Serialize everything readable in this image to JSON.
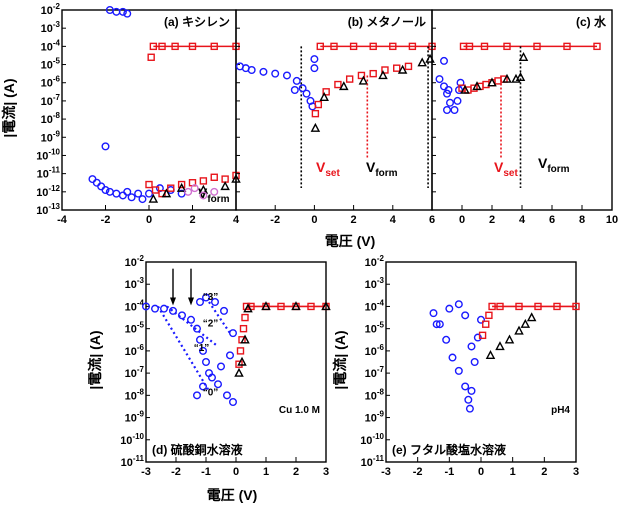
{
  "figure": {
    "top_xlabel": "電圧 (V)",
    "bottom_xlabel": "電圧 (V)",
    "ylabel": "|電流| (A)",
    "vset_label": "V",
    "vset_sub": "set",
    "vform_label": "V",
    "vform_sub": "form"
  },
  "chart_data": [
    {
      "type": "scatter",
      "panel": "a",
      "title": "(a) キシレン",
      "xlim": [
        -4,
        4
      ],
      "ylog_range": [
        -13,
        -2
      ],
      "x_ticks": [
        "-4",
        "-2",
        "0",
        "2",
        "4"
      ],
      "y_ticks": [
        "10-2",
        "10-3",
        "10-4",
        "10-5",
        "10-6",
        "10-7",
        "10-8",
        "10-9",
        "10-10",
        "10-11",
        "10-12",
        "10-13"
      ],
      "annotations": {
        "vform_x": 7.0
      },
      "series": [
        {
          "color": "#1a1aff",
          "marker": "circle",
          "points": [
            [
              -2.6,
              -11.3
            ],
            [
              -2.4,
              -11.5
            ],
            [
              -2.2,
              -11.7
            ],
            [
              -2.0,
              -11.9
            ],
            [
              -1.8,
              -12.0
            ],
            [
              -1.5,
              -12.1
            ],
            [
              -1.2,
              -12.2
            ],
            [
              -1.0,
              -12.0
            ],
            [
              -0.8,
              -12.3
            ],
            [
              -0.5,
              -12.1
            ],
            [
              -0.3,
              -12.4
            ],
            [
              -2.0,
              -9.5
            ],
            [
              -1.8,
              -2.0
            ],
            [
              -1.5,
              -2.1
            ],
            [
              -1.2,
              -2.1
            ],
            [
              -1.0,
              -2.2
            ],
            [
              0.0,
              -12.1
            ],
            [
              0.5,
              -11.8
            ],
            [
              1.0,
              -11.9
            ],
            [
              1.5,
              -12.1
            ]
          ]
        },
        {
          "color": "#e8141b",
          "marker": "square",
          "points": [
            [
              0,
              -11.6
            ],
            [
              0.3,
              -11.9
            ],
            [
              0.6,
              -12.1
            ],
            [
              1.0,
              -11.8
            ],
            [
              1.5,
              -11.6
            ],
            [
              2.0,
              -11.5
            ],
            [
              2.5,
              -11.4
            ],
            [
              3.0,
              -11.2
            ],
            [
              3.5,
              -11.3
            ],
            [
              4.0,
              -11.1
            ],
            [
              0.1,
              -4.6
            ],
            [
              0.2,
              -4.0
            ],
            [
              0.6,
              -4.0
            ],
            [
              1.2,
              -4.0
            ],
            [
              2.0,
              -4.0
            ],
            [
              3.0,
              -4.0
            ],
            [
              4.0,
              -4.0
            ]
          ]
        },
        {
          "color": "#000000",
          "marker": "triangle",
          "points": [
            [
              0.2,
              -12.4
            ],
            [
              0.8,
              -12.1
            ],
            [
              1.5,
              -11.8
            ],
            [
              2.5,
              -11.9
            ],
            [
              3.5,
              -11.7
            ],
            [
              4.0,
              -11.3
            ]
          ]
        },
        {
          "color": "#d070d0",
          "marker": "circle",
          "points": [
            [
              1.8,
              -12.0
            ],
            [
              2.1,
              -11.8
            ],
            [
              2.5,
              -12.2
            ],
            [
              3.0,
              -12.0
            ]
          ]
        }
      ]
    },
    {
      "type": "scatter",
      "panel": "b",
      "title": "(b) メタノール",
      "xlim": [
        -4,
        6
      ],
      "ylog_range": [
        -13,
        -2
      ],
      "x_ticks": [
        "-2",
        "0",
        "2",
        "4",
        "6"
      ],
      "annotations": {
        "vset_x": 2.7,
        "vform_x": 5.8
      },
      "series": [
        {
          "color": "#1a1aff",
          "marker": "circle",
          "points": [
            [
              -3.8,
              -5.1
            ],
            [
              -3.2,
              -5.3
            ],
            [
              -2.6,
              -5.4
            ],
            [
              -2.0,
              -5.5
            ],
            [
              -1.4,
              -5.6
            ],
            [
              -0.9,
              -5.9
            ],
            [
              -0.6,
              -6.3
            ],
            [
              -0.4,
              -6.6
            ],
            [
              -0.2,
              -7.0
            ],
            [
              -0.1,
              -7.3
            ],
            [
              -3.5,
              -5.2
            ],
            [
              -1.0,
              -6.4
            ],
            [
              0.0,
              -5.2
            ],
            [
              0.0,
              -4.7
            ]
          ]
        },
        {
          "color": "#e8141b",
          "marker": "square",
          "points": [
            [
              0.05,
              -7.7
            ],
            [
              0.2,
              -7.2
            ],
            [
              0.6,
              -6.5
            ],
            [
              1.2,
              -6.1
            ],
            [
              1.8,
              -5.8
            ],
            [
              2.4,
              -5.6
            ],
            [
              3.0,
              -5.5
            ],
            [
              3.6,
              -5.3
            ],
            [
              4.2,
              -5.2
            ],
            [
              4.8,
              -5.1
            ],
            [
              0.3,
              -4.0
            ],
            [
              1.0,
              -4.0
            ],
            [
              2.0,
              -4.0
            ],
            [
              3.0,
              -4.0
            ],
            [
              4.0,
              -4.0
            ],
            [
              5.0,
              -4.0
            ],
            [
              6.0,
              -4.0
            ]
          ]
        },
        {
          "color": "#000000",
          "marker": "triangle",
          "points": [
            [
              0.05,
              -8.5
            ],
            [
              0.5,
              -6.8
            ],
            [
              1.5,
              -6.2
            ],
            [
              2.5,
              -5.9
            ],
            [
              3.5,
              -5.6
            ],
            [
              4.5,
              -5.3
            ],
            [
              5.5,
              -4.9
            ],
            [
              5.9,
              -4.7
            ]
          ]
        }
      ]
    },
    {
      "type": "scatter",
      "panel": "c",
      "title": "(c) 水",
      "xlim": [
        -2,
        10
      ],
      "ylog_range": [
        -13,
        -2
      ],
      "x_ticks": [
        "0",
        "2",
        "4",
        "6",
        "8",
        "10"
      ],
      "annotations": {
        "vset_x": 2.6,
        "vform_x": 3.9
      },
      "series": [
        {
          "color": "#1a1aff",
          "marker": "circle",
          "points": [
            [
              -1.5,
              -5.8
            ],
            [
              -1.2,
              -6.2
            ],
            [
              -1.0,
              -6.6
            ],
            [
              -0.8,
              -7.1
            ],
            [
              -0.5,
              -7.5
            ],
            [
              -0.3,
              -7.0
            ],
            [
              -0.2,
              -6.4
            ],
            [
              -0.1,
              -6.0
            ],
            [
              -1.2,
              -4.8
            ],
            [
              -1.0,
              -7.5
            ],
            [
              -0.9,
              -6.4
            ]
          ]
        },
        {
          "color": "#e8141b",
          "marker": "square",
          "points": [
            [
              0.0,
              -6.3
            ],
            [
              0.4,
              -6.4
            ],
            [
              0.8,
              -6.3
            ],
            [
              1.2,
              -6.2
            ],
            [
              1.6,
              -6.1
            ],
            [
              2.0,
              -6.0
            ],
            [
              2.4,
              -5.9
            ],
            [
              2.8,
              -5.8
            ],
            [
              0.1,
              -4.0
            ],
            [
              0.5,
              -4.0
            ],
            [
              1.5,
              -4.0
            ],
            [
              3.0,
              -4.0
            ],
            [
              5.0,
              -4.0
            ],
            [
              7.0,
              -4.0
            ],
            [
              9.0,
              -4.0
            ]
          ]
        },
        {
          "color": "#000000",
          "marker": "triangle",
          "points": [
            [
              0.2,
              -6.4
            ],
            [
              1.0,
              -6.2
            ],
            [
              2.0,
              -6.0
            ],
            [
              3.0,
              -5.8
            ],
            [
              3.6,
              -5.8
            ],
            [
              3.9,
              -5.7
            ],
            [
              4.1,
              -4.6
            ]
          ]
        }
      ]
    },
    {
      "type": "scatter",
      "panel": "d",
      "title": "(d) 硫酸銅水溶液",
      "xlim": [
        -3,
        3
      ],
      "ylog_range": [
        -11,
        -2
      ],
      "x_ticks": [
        "-3",
        "-2",
        "-1",
        "0",
        "1",
        "2",
        "3"
      ],
      "y_ticks": [
        "10-2",
        "10-3",
        "10-4",
        "10-5",
        "10-6",
        "10-7",
        "10-8",
        "10-9",
        "10-10",
        "10-11"
      ],
      "annotations": {
        "label": "Cu 1.0 M",
        "states": [
          "“3”",
          "“2”",
          "“1”",
          "“0”"
        ]
      },
      "series": [
        {
          "color": "#1a1aff",
          "marker": "circle",
          "points": [
            [
              -3.0,
              -4.0
            ],
            [
              -2.7,
              -4.1
            ],
            [
              -2.4,
              -4.1
            ],
            [
              -2.1,
              -4.2
            ],
            [
              -1.8,
              -4.4
            ],
            [
              -1.5,
              -4.6
            ],
            [
              -1.3,
              -5.0
            ],
            [
              -1.2,
              -5.5
            ],
            [
              -1.1,
              -6.0
            ],
            [
              -1.0,
              -6.5
            ],
            [
              -0.9,
              -7.0
            ],
            [
              -0.6,
              -7.5
            ],
            [
              -0.3,
              -8.0
            ],
            [
              -0.1,
              -8.3
            ],
            [
              -1.3,
              -8.0
            ],
            [
              -1.1,
              -7.6
            ],
            [
              -0.8,
              -7.2
            ],
            [
              -0.5,
              -6.7
            ],
            [
              -0.2,
              -6.2
            ],
            [
              -1.2,
              -3.8
            ],
            [
              -1.0,
              -3.6
            ],
            [
              -0.7,
              -3.8
            ],
            [
              -0.4,
              -4.2
            ],
            [
              -0.1,
              -5.2
            ]
          ]
        },
        {
          "color": "#e8141b",
          "marker": "square",
          "points": [
            [
              0.1,
              -6.6
            ],
            [
              0.15,
              -6.0
            ],
            [
              0.2,
              -5.5
            ],
            [
              0.25,
              -5.0
            ],
            [
              0.3,
              -4.5
            ],
            [
              0.35,
              -4.0
            ],
            [
              0.5,
              -4.0
            ],
            [
              1.0,
              -4.0
            ],
            [
              1.5,
              -4.0
            ],
            [
              2.0,
              -4.0
            ],
            [
              2.5,
              -4.0
            ],
            [
              3.0,
              -4.0
            ]
          ]
        },
        {
          "color": "#000000",
          "marker": "triangle",
          "points": [
            [
              0.1,
              -7.0
            ],
            [
              0.2,
              -6.5
            ],
            [
              0.3,
              -5.5
            ],
            [
              0.4,
              -4.1
            ],
            [
              1.0,
              -4.0
            ],
            [
              2.0,
              -4.0
            ],
            [
              3.0,
              -4.0
            ]
          ]
        }
      ]
    },
    {
      "type": "scatter",
      "panel": "e",
      "title": "(e) フタル酸塩水溶液",
      "xlim": [
        -3,
        3
      ],
      "ylog_range": [
        -11,
        -2
      ],
      "x_ticks": [
        "-3",
        "-2",
        "-1",
        "0",
        "1",
        "2",
        "3"
      ],
      "y_ticks": [
        "10-2",
        "10-3",
        "10-4",
        "10-5",
        "10-6",
        "10-7",
        "10-8",
        "10-9",
        "10-10",
        "10-11"
      ],
      "annotations": {
        "label": "pH4"
      },
      "series": [
        {
          "color": "#1a1aff",
          "marker": "circle",
          "points": [
            [
              -1.5,
              -4.3
            ],
            [
              -1.3,
              -4.8
            ],
            [
              -1.1,
              -5.5
            ],
            [
              -0.9,
              -6.3
            ],
            [
              -0.7,
              -6.9
            ],
            [
              -0.5,
              -7.6
            ],
            [
              -0.4,
              -8.2
            ],
            [
              -0.35,
              -8.6
            ],
            [
              -0.3,
              -7.8
            ],
            [
              -0.2,
              -6.5
            ],
            [
              -0.1,
              -5.4
            ],
            [
              0.0,
              -4.6
            ],
            [
              -1.4,
              -4.8
            ],
            [
              -1.0,
              -4.1
            ],
            [
              -0.7,
              -3.9
            ],
            [
              -0.5,
              -4.4
            ],
            [
              -0.3,
              -5.8
            ]
          ]
        },
        {
          "color": "#e8141b",
          "marker": "square",
          "points": [
            [
              0.05,
              -5.3
            ],
            [
              0.15,
              -4.8
            ],
            [
              0.25,
              -4.4
            ],
            [
              0.35,
              -4.0
            ],
            [
              0.6,
              -4.0
            ],
            [
              1.2,
              -4.0
            ],
            [
              1.8,
              -4.0
            ],
            [
              2.4,
              -4.0
            ],
            [
              3.0,
              -4.0
            ]
          ]
        },
        {
          "color": "#000000",
          "marker": "triangle",
          "points": [
            [
              0.3,
              -6.2
            ],
            [
              0.6,
              -5.8
            ],
            [
              0.9,
              -5.5
            ],
            [
              1.2,
              -5.1
            ],
            [
              1.4,
              -4.8
            ],
            [
              1.6,
              -4.5
            ]
          ]
        }
      ]
    }
  ]
}
